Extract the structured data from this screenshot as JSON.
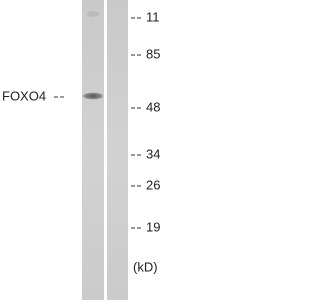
{
  "blot": {
    "protein": "FOXO4",
    "markers": [
      "11",
      "85",
      "48",
      "34",
      "26",
      "19"
    ],
    "unit": "(kD)"
  }
}
